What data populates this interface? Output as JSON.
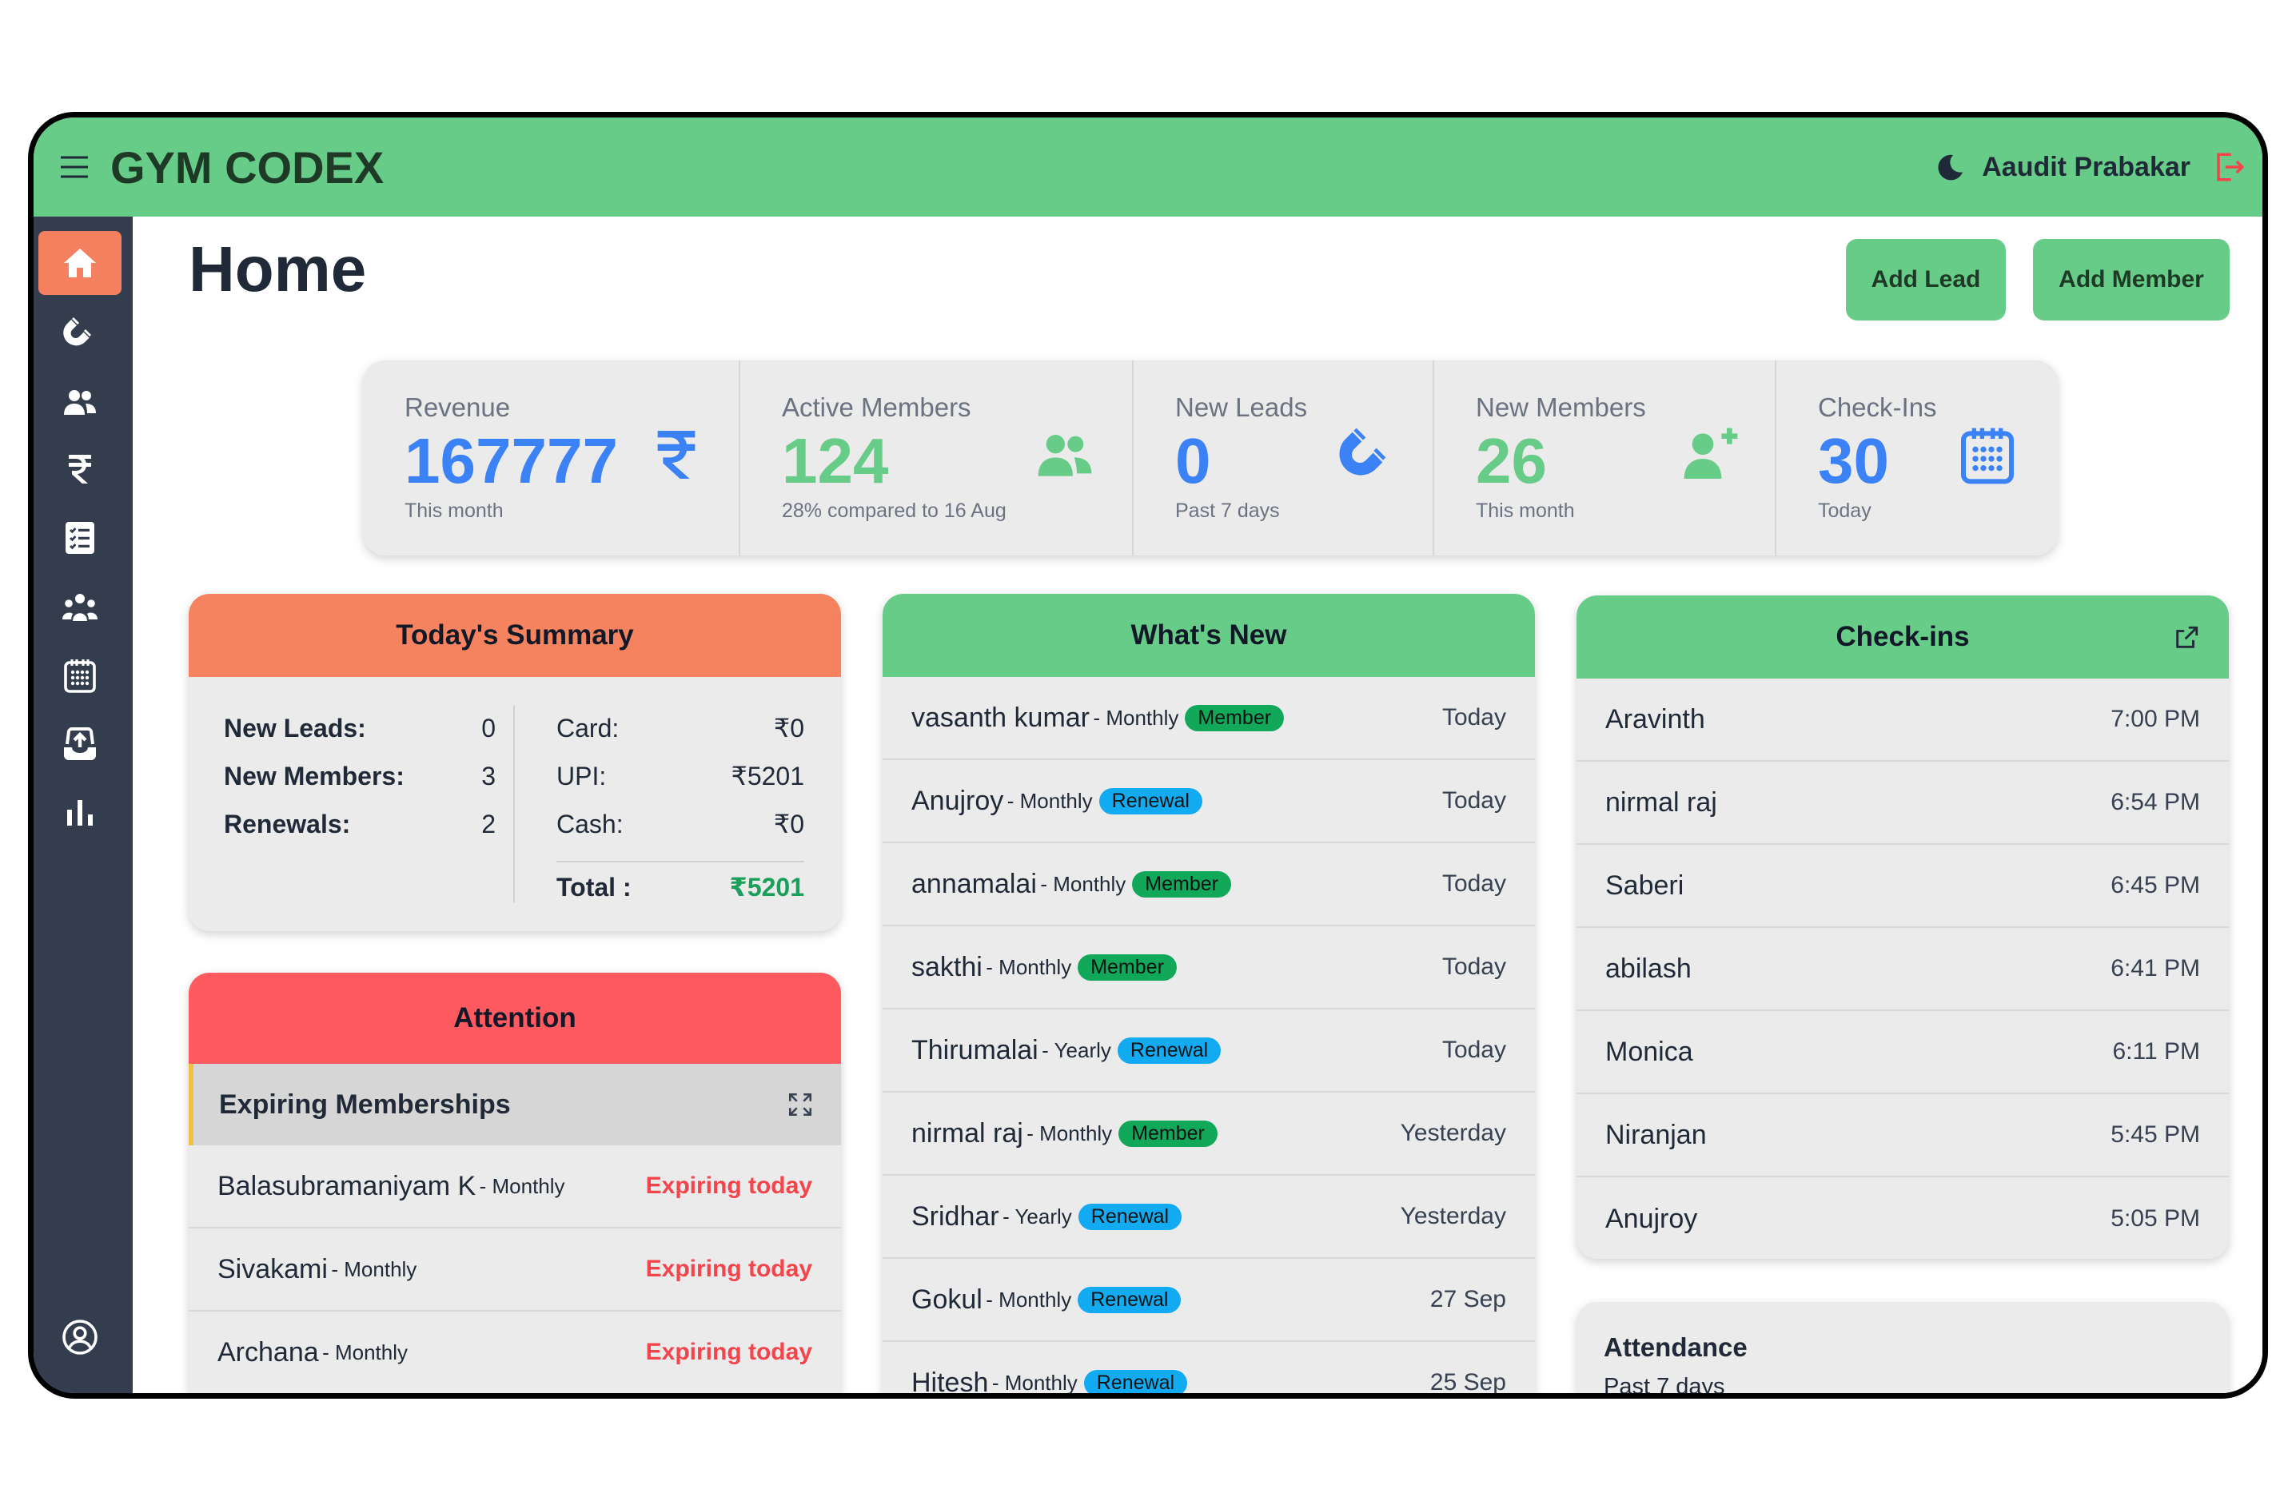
{
  "colors": {
    "primary": "#66cc88",
    "sidebar": "#333d4d",
    "active": "#f5805f",
    "attention": "#ff5a60",
    "blue": "#3b82f6",
    "expiring": "#f4444c",
    "member_badge": "#11a85a",
    "renewal_badge": "#12aaf0"
  },
  "header": {
    "brand": "GYM CODEX",
    "user_name": "Aaudit Prabakar"
  },
  "sidebar": {
    "items": [
      "home-icon",
      "magnet-icon",
      "members-icon",
      "rupee-icon",
      "checklist-icon",
      "group-icon",
      "calendar-icon",
      "upload-icon",
      "bar-chart-icon"
    ],
    "footer": "user-circle-icon"
  },
  "page": {
    "title": "Home",
    "add_lead": "Add Lead",
    "add_member": "Add Member"
  },
  "stats": [
    {
      "label": "Revenue",
      "value": "167777",
      "sub": "This month",
      "icon": "rupee-icon",
      "color": "#3b82f6"
    },
    {
      "label": "Active Members",
      "value": "124",
      "sub": "28% compared to 16 Aug",
      "icon": "members-icon",
      "color": "#66cc88"
    },
    {
      "label": "New Leads",
      "value": "0",
      "sub": "Past 7 days",
      "icon": "magnet-icon",
      "color": "#3b82f6"
    },
    {
      "label": "New Members",
      "value": "26",
      "sub": "This month",
      "icon": "add-user-icon",
      "color": "#66cc88"
    },
    {
      "label": "Check-Ins",
      "value": "30",
      "sub": "Today",
      "icon": "calendar-icon",
      "color": "#3b82f6"
    }
  ],
  "summary": {
    "title": "Today's Summary",
    "left": [
      {
        "k": "New Leads:",
        "v": "0"
      },
      {
        "k": "New Members:",
        "v": "3"
      },
      {
        "k": "Renewals:",
        "v": "2"
      }
    ],
    "right": [
      {
        "k": "Card:",
        "v": "₹0"
      },
      {
        "k": "UPI:",
        "v": "₹5201"
      },
      {
        "k": "Cash:",
        "v": "₹0"
      }
    ],
    "total_label": "Total :",
    "total_value": "₹5201"
  },
  "attention": {
    "title": "Attention",
    "section": "Expiring Memberships",
    "rows": [
      {
        "name": "Balasubramaniyam K",
        "plan": "- Monthly",
        "status": "Expiring today"
      },
      {
        "name": "Sivakami",
        "plan": "- Monthly",
        "status": "Expiring today"
      },
      {
        "name": "Archana",
        "plan": "- Monthly",
        "status": "Expiring today"
      }
    ]
  },
  "whats_new": {
    "title": "What's New",
    "rows": [
      {
        "name": "vasanth kumar",
        "plan": "- Monthly",
        "badge": "Member",
        "badge_type": "member",
        "when": "Today"
      },
      {
        "name": "Anujroy",
        "plan": "- Monthly",
        "badge": "Renewal",
        "badge_type": "renewal",
        "when": "Today"
      },
      {
        "name": "annamalai",
        "plan": "- Monthly",
        "badge": "Member",
        "badge_type": "member",
        "when": "Today"
      },
      {
        "name": "sakthi",
        "plan": "- Monthly",
        "badge": "Member",
        "badge_type": "member",
        "when": "Today"
      },
      {
        "name": "Thirumalai",
        "plan": "- Yearly",
        "badge": "Renewal",
        "badge_type": "renewal",
        "when": "Today"
      },
      {
        "name": "nirmal raj",
        "plan": "- Monthly",
        "badge": "Member",
        "badge_type": "member",
        "when": "Yesterday"
      },
      {
        "name": "Sridhar",
        "plan": "- Yearly",
        "badge": "Renewal",
        "badge_type": "renewal",
        "when": "Yesterday"
      },
      {
        "name": "Gokul",
        "plan": "- Monthly",
        "badge": "Renewal",
        "badge_type": "renewal",
        "when": "27 Sep"
      },
      {
        "name": "Hitesh",
        "plan": "- Monthly",
        "badge": "Renewal",
        "badge_type": "renewal",
        "when": "25 Sep"
      }
    ]
  },
  "checkins": {
    "title": "Check-ins",
    "rows": [
      {
        "name": "Aravinth",
        "time": "7:00 PM"
      },
      {
        "name": "nirmal raj",
        "time": "6:54 PM"
      },
      {
        "name": "Saberi",
        "time": "6:45 PM"
      },
      {
        "name": "abilash",
        "time": "6:41 PM"
      },
      {
        "name": "Monica",
        "time": "6:11 PM"
      },
      {
        "name": "Niranjan",
        "time": "5:45 PM"
      },
      {
        "name": "Anujroy",
        "time": "5:05 PM"
      }
    ]
  },
  "attendance": {
    "title": "Attendance",
    "sub": "Past 7 days"
  }
}
